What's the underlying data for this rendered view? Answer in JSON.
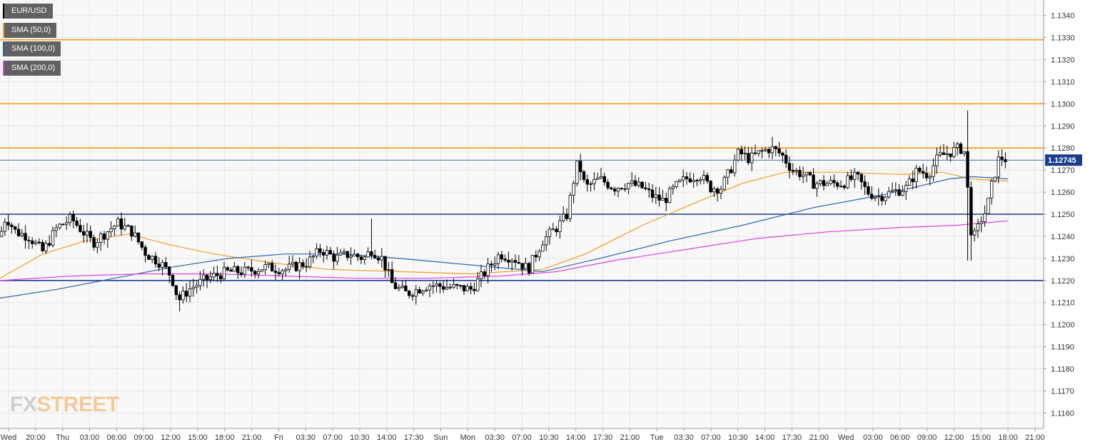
{
  "legend": [
    {
      "label": "EUR/USD",
      "color": "#000000"
    },
    {
      "label": "SMA (50,0)",
      "color": "#f39c1f"
    },
    {
      "label": "SMA (100,0)",
      "color": "#2b63b3"
    },
    {
      "label": "SMA (200,0)",
      "color": "#e040e0"
    }
  ],
  "watermark": {
    "part1": "FX",
    "part2": "STREET"
  },
  "chart_data": {
    "type": "candlestick",
    "symbol": "EUR/USD",
    "ylim": [
      1.1153,
      1.1347
    ],
    "y_ticks": [
      "1.1160",
      "1.1170",
      "1.1180",
      "1.1190",
      "1.1200",
      "1.1210",
      "1.1220",
      "1.1230",
      "1.1240",
      "1.1250",
      "1.1260",
      "1.1270",
      "1.1280",
      "1.1290",
      "1.1300",
      "1.1310",
      "1.1320",
      "1.1330",
      "1.1340"
    ],
    "x_ticks": [
      "Wed",
      "20:00",
      "Thu",
      "03:00",
      "06:00",
      "09:00",
      "12:00",
      "15:00",
      "18:00",
      "21:00",
      "Fri",
      "03:30",
      "07:00",
      "10:30",
      "14:00",
      "17:30",
      "Sun",
      "Mon",
      "03:30",
      "07:00",
      "10:30",
      "14:00",
      "17:30",
      "21:00",
      "Tue",
      "03:30",
      "07:00",
      "10:30",
      "14:00",
      "17:30",
      "21:00",
      "Wed",
      "03:00",
      "06:00",
      "09:00",
      "12:00",
      "15:00",
      "18:00",
      "21:00"
    ],
    "last_price": {
      "value": 1.12745,
      "label": "1.12745"
    },
    "horizontal_levels": [
      {
        "value": 1.1329,
        "color": "#f39c1f"
      },
      {
        "value": 1.13,
        "color": "#f39c1f"
      },
      {
        "value": 1.128,
        "color": "#f39c1f"
      },
      {
        "value": 1.125,
        "color": "#1a3d8f"
      },
      {
        "value": 1.122,
        "color": "#1a3d8f"
      }
    ],
    "price_path": [
      [
        0,
        1.124
      ],
      [
        8,
        1.1249
      ],
      [
        22,
        1.1242
      ],
      [
        40,
        1.124
      ],
      [
        60,
        1.1233
      ],
      [
        80,
        1.1244
      ],
      [
        100,
        1.1248
      ],
      [
        130,
        1.1237
      ],
      [
        165,
        1.1246
      ],
      [
        185,
        1.1242
      ],
      [
        205,
        1.1232
      ],
      [
        225,
        1.1228
      ],
      [
        240,
        1.1222
      ],
      [
        250,
        1.1211
      ],
      [
        265,
        1.1216
      ],
      [
        285,
        1.122
      ],
      [
        300,
        1.1222
      ],
      [
        320,
        1.1224
      ],
      [
        345,
        1.1224
      ],
      [
        370,
        1.1226
      ],
      [
        400,
        1.1225
      ],
      [
        430,
        1.1228
      ],
      [
        450,
        1.1234
      ],
      [
        470,
        1.123
      ],
      [
        490,
        1.1232
      ],
      [
        510,
        1.123
      ],
      [
        520,
        1.1234
      ],
      [
        535,
        1.123
      ],
      [
        550,
        1.1218
      ],
      [
        570,
        1.1214
      ],
      [
        600,
        1.1218
      ],
      [
        630,
        1.1217
      ],
      [
        660,
        1.1216
      ],
      [
        680,
        1.1224
      ],
      [
        700,
        1.1232
      ],
      [
        720,
        1.123
      ],
      [
        740,
        1.1225
      ],
      [
        760,
        1.1238
      ],
      [
        780,
        1.1244
      ],
      [
        795,
        1.125
      ],
      [
        802,
        1.1263
      ],
      [
        810,
        1.1274
      ],
      [
        820,
        1.1262
      ],
      [
        840,
        1.1266
      ],
      [
        860,
        1.1262
      ],
      [
        880,
        1.1264
      ],
      [
        900,
        1.1262
      ],
      [
        915,
        1.1258
      ],
      [
        930,
        1.1256
      ],
      [
        945,
        1.1262
      ],
      [
        960,
        1.1266
      ],
      [
        980,
        1.1268
      ],
      [
        995,
        1.1262
      ],
      [
        1010,
        1.1262
      ],
      [
        1020,
        1.1268
      ],
      [
        1035,
        1.1278
      ],
      [
        1050,
        1.1275
      ],
      [
        1065,
        1.1278
      ],
      [
        1080,
        1.128
      ],
      [
        1095,
        1.1277
      ],
      [
        1110,
        1.127
      ],
      [
        1125,
        1.1268
      ],
      [
        1140,
        1.1264
      ],
      [
        1160,
        1.1264
      ],
      [
        1180,
        1.1264
      ],
      [
        1200,
        1.1267
      ],
      [
        1215,
        1.126
      ],
      [
        1230,
        1.1258
      ],
      [
        1250,
        1.126
      ],
      [
        1270,
        1.1262
      ],
      [
        1285,
        1.127
      ],
      [
        1300,
        1.1268
      ],
      [
        1315,
        1.1276
      ],
      [
        1330,
        1.1278
      ],
      [
        1345,
        1.128
      ],
      [
        1352,
        1.1278
      ],
      [
        1358,
        1.125
      ],
      [
        1362,
        1.1238
      ],
      [
        1368,
        1.1242
      ],
      [
        1375,
        1.1248
      ],
      [
        1382,
        1.1252
      ],
      [
        1390,
        1.1264
      ],
      [
        1400,
        1.1276
      ],
      [
        1412,
        1.12745
      ]
    ],
    "spikes": [
      {
        "pos": 250,
        "low": 1.1206
      },
      {
        "pos": 519,
        "high": 1.1248
      },
      {
        "pos": 1083,
        "high": 1.1285
      },
      {
        "pos": 1355,
        "high": 1.1297
      },
      {
        "pos": 1358,
        "low": 1.1229
      }
    ],
    "series": [
      {
        "name": "SMA (50,0)",
        "color": "#f39c1f",
        "points": [
          [
            0,
            1.1221
          ],
          [
            60,
            1.1232
          ],
          [
            120,
            1.1238
          ],
          [
            180,
            1.1241
          ],
          [
            240,
            1.1236
          ],
          [
            300,
            1.1232
          ],
          [
            380,
            1.1228
          ],
          [
            460,
            1.1225
          ],
          [
            560,
            1.1224
          ],
          [
            660,
            1.1223
          ],
          [
            760,
            1.1225
          ],
          [
            820,
            1.1232
          ],
          [
            900,
            1.1245
          ],
          [
            980,
            1.1256
          ],
          [
            1040,
            1.1264
          ],
          [
            1100,
            1.1269
          ],
          [
            1180,
            1.1269
          ],
          [
            1260,
            1.1268
          ],
          [
            1320,
            1.1269
          ],
          [
            1360,
            1.1266
          ],
          [
            1412,
            1.1265
          ]
        ]
      },
      {
        "name": "SMA (100,0)",
        "color": "#2b63b3",
        "points": [
          [
            0,
            1.1212
          ],
          [
            80,
            1.1216
          ],
          [
            160,
            1.1221
          ],
          [
            240,
            1.1226
          ],
          [
            320,
            1.123
          ],
          [
            400,
            1.1232
          ],
          [
            480,
            1.1232
          ],
          [
            560,
            1.123
          ],
          [
            660,
            1.1227
          ],
          [
            760,
            1.1224
          ],
          [
            840,
            1.123
          ],
          [
            940,
            1.1238
          ],
          [
            1040,
            1.1245
          ],
          [
            1140,
            1.1253
          ],
          [
            1240,
            1.1259
          ],
          [
            1330,
            1.1266
          ],
          [
            1362,
            1.1267
          ],
          [
            1412,
            1.1266
          ]
        ]
      },
      {
        "name": "SMA (200,0)",
        "color": "#e040e0",
        "points": [
          [
            0,
            1.122
          ],
          [
            100,
            1.1222
          ],
          [
            200,
            1.1223
          ],
          [
            300,
            1.1223
          ],
          [
            400,
            1.1222
          ],
          [
            500,
            1.1221
          ],
          [
            600,
            1.1221
          ],
          [
            700,
            1.1222
          ],
          [
            780,
            1.1224
          ],
          [
            860,
            1.1229
          ],
          [
            960,
            1.1234
          ],
          [
            1060,
            1.1239
          ],
          [
            1160,
            1.1242
          ],
          [
            1260,
            1.1244
          ],
          [
            1340,
            1.1245
          ],
          [
            1412,
            1.1247
          ]
        ]
      }
    ]
  }
}
